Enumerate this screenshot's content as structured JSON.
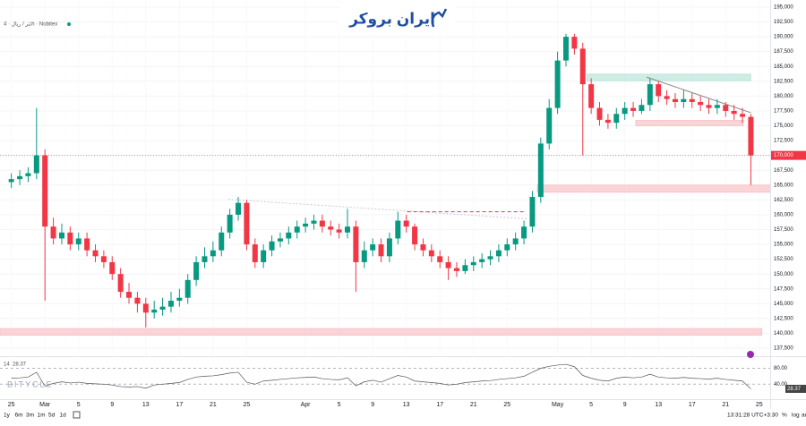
{
  "ui": {
    "symbol": "تتر / ریال · 4h · Nobitex",
    "logo": "ایران بروکر",
    "watermark": "BITYCLE",
    "ranges": [
      "1y",
      "6m",
      "3m",
      "1m",
      "5d",
      "1d"
    ],
    "clock": "13:31:28 UTC+3:30",
    "scale_buttons": [
      "%",
      "log",
      "auto"
    ]
  },
  "chart_data": [
    {
      "type": "candlestick",
      "up_color": "#089981",
      "down_color": "#f23645",
      "x": [
        0,
        1,
        2,
        3,
        4,
        5,
        6,
        7,
        8,
        9,
        10,
        11,
        12,
        13,
        14,
        15,
        16,
        17,
        18,
        19,
        20,
        21,
        22,
        23,
        24,
        25,
        26,
        27,
        28,
        29,
        30,
        31,
        32,
        33,
        34,
        35,
        36,
        37,
        38,
        39,
        40,
        41,
        42,
        43,
        44,
        45,
        46,
        47,
        48,
        49,
        50,
        51,
        52,
        53,
        54,
        55,
        56,
        57,
        58,
        59,
        60,
        61,
        62,
        63,
        64,
        65,
        66,
        67,
        68,
        69,
        70,
        71,
        72,
        73,
        74,
        75,
        76,
        77,
        78,
        79,
        80,
        81,
        82,
        83,
        84,
        85,
        86,
        87,
        88
      ],
      "open": [
        165500,
        166000,
        166500,
        167000,
        170000,
        158000,
        156000,
        157000,
        155000,
        156000,
        154000,
        153000,
        152000,
        150000,
        147000,
        146000,
        145000,
        143500,
        144000,
        144500,
        145500,
        146000,
        149000,
        152000,
        153000,
        154000,
        157000,
        160000,
        162000,
        155000,
        152000,
        154000,
        155500,
        156000,
        157000,
        158000,
        158500,
        159000,
        158000,
        157500,
        157000,
        158000,
        152000,
        154000,
        155000,
        153000,
        156000,
        159000,
        158000,
        155000,
        154000,
        153000,
        152000,
        151000,
        150500,
        151500,
        152000,
        152500,
        153000,
        154000,
        155000,
        156000,
        158000,
        163000,
        172000,
        178000,
        186000,
        190000,
        188000,
        182000,
        178000,
        176000,
        175500,
        177000,
        178000,
        177500,
        178500,
        182000,
        180000,
        179500,
        179000,
        179500,
        179000,
        178500,
        178000,
        178500,
        177500,
        177000,
        176500
      ],
      "high": [
        167000,
        167500,
        168000,
        178000,
        171000,
        159500,
        158500,
        158000,
        157000,
        157000,
        155000,
        154000,
        153000,
        151000,
        148500,
        147000,
        146000,
        145500,
        146000,
        147000,
        147500,
        150000,
        153000,
        154500,
        155500,
        158000,
        161000,
        163000,
        162500,
        156000,
        155000,
        156500,
        157000,
        158000,
        159000,
        159500,
        160000,
        160000,
        159000,
        158500,
        161000,
        159000,
        155500,
        156000,
        156000,
        157000,
        160500,
        160000,
        158500,
        156000,
        155000,
        154000,
        153000,
        152000,
        152500,
        153000,
        153500,
        154000,
        155000,
        156000,
        157000,
        159000,
        164000,
        173000,
        179500,
        187500,
        190500,
        190500,
        189000,
        183000,
        179000,
        177000,
        178000,
        179000,
        179000,
        179500,
        183000,
        182500,
        181000,
        180500,
        181000,
        180500,
        180000,
        179500,
        179500,
        179000,
        178500,
        178000,
        177000
      ],
      "low": [
        164500,
        165000,
        165500,
        166000,
        145500,
        155000,
        155000,
        154000,
        154000,
        153000,
        152000,
        151000,
        149000,
        146000,
        145000,
        143500,
        141000,
        142500,
        143000,
        143500,
        144500,
        145000,
        148000,
        151000,
        152000,
        153000,
        156000,
        159000,
        154000,
        151000,
        151000,
        153000,
        154500,
        155000,
        156000,
        157000,
        157500,
        157000,
        156500,
        156000,
        156000,
        147000,
        151000,
        153000,
        152000,
        152000,
        155000,
        157000,
        154000,
        153000,
        152000,
        151000,
        149000,
        149500,
        150000,
        150500,
        151000,
        151500,
        152000,
        153000,
        154000,
        155000,
        157000,
        162000,
        171000,
        177000,
        185000,
        187000,
        170000,
        177000,
        175000,
        174500,
        174500,
        176000,
        176500,
        177000,
        177500,
        179000,
        178500,
        178000,
        178000,
        178000,
        177500,
        177000,
        177000,
        176500,
        176000,
        175500,
        165000
      ],
      "close": [
        166000,
        166500,
        167000,
        170000,
        158000,
        156000,
        157000,
        155000,
        156000,
        154000,
        153000,
        152000,
        150000,
        147000,
        146000,
        145000,
        143500,
        144000,
        144500,
        145500,
        146000,
        149000,
        152000,
        153000,
        154000,
        157000,
        160000,
        162000,
        155000,
        152000,
        154000,
        155500,
        156000,
        157000,
        158000,
        158500,
        159000,
        158000,
        157500,
        157000,
        158000,
        152000,
        154000,
        155000,
        153000,
        156000,
        159000,
        158000,
        155000,
        154000,
        153000,
        152000,
        151000,
        150500,
        151500,
        152000,
        152500,
        153000,
        154000,
        155000,
        156000,
        158000,
        163000,
        172000,
        178000,
        186000,
        190000,
        188000,
        182000,
        178000,
        176000,
        175500,
        177000,
        178000,
        177500,
        178500,
        182000,
        180000,
        179500,
        179000,
        179500,
        179000,
        178500,
        178000,
        178500,
        177500,
        177000,
        176500,
        170000
      ],
      "last_price": {
        "value": 170000,
        "label": "170,000"
      },
      "xlim": [
        -0.85,
        90.8
      ],
      "ylim": [
        136300,
        196200
      ],
      "xticks": [
        {
          "value": 0,
          "label": "25"
        },
        {
          "value": 4,
          "label": "Mar"
        },
        {
          "value": 8,
          "label": "5"
        },
        {
          "value": 12,
          "label": "9"
        },
        {
          "value": 16,
          "label": "13"
        },
        {
          "value": 20,
          "label": "17"
        },
        {
          "value": 24,
          "label": "21"
        },
        {
          "value": 28,
          "label": "25"
        },
        {
          "value": 35,
          "label": "Apr"
        },
        {
          "value": 39,
          "label": "5"
        },
        {
          "value": 43,
          "label": "9"
        },
        {
          "value": 47,
          "label": "13"
        },
        {
          "value": 51,
          "label": "17"
        },
        {
          "value": 55,
          "label": "21"
        },
        {
          "value": 59,
          "label": "25"
        },
        {
          "value": 65,
          "label": "May"
        },
        {
          "value": 69,
          "label": "5"
        },
        {
          "value": 73,
          "label": "9"
        },
        {
          "value": 77,
          "label": "13"
        },
        {
          "value": 81,
          "label": "17"
        },
        {
          "value": 85,
          "label": "21"
        },
        {
          "value": 89,
          "label": "25"
        }
      ],
      "yticks": [
        {
          "value": 137500,
          "label": "137,500"
        },
        {
          "value": 140000,
          "label": "140,000"
        },
        {
          "value": 142500,
          "label": "142,500"
        },
        {
          "value": 145000,
          "label": "145,000"
        },
        {
          "value": 147500,
          "label": "147,500"
        },
        {
          "value": 150000,
          "label": "150,000"
        },
        {
          "value": 152500,
          "label": "152,500"
        },
        {
          "value": 155000,
          "label": "155,000"
        },
        {
          "value": 157500,
          "label": "157,500"
        },
        {
          "value": 160000,
          "label": "160,000"
        },
        {
          "value": 162500,
          "label": "162,500"
        },
        {
          "value": 165000,
          "label": "165,000"
        },
        {
          "value": 167500,
          "label": "167,500"
        },
        {
          "value": 170000,
          "label": "170,000"
        },
        {
          "value": 172500,
          "label": "172,500"
        },
        {
          "value": 175000,
          "label": "175,000"
        },
        {
          "value": 177500,
          "label": "177,500"
        },
        {
          "value": 180000,
          "label": "180,000"
        },
        {
          "value": 182500,
          "label": "182,500"
        },
        {
          "value": 185000,
          "label": "185,000"
        },
        {
          "value": 187500,
          "label": "187,500"
        },
        {
          "value": 190000,
          "label": "190,000"
        },
        {
          "value": 192500,
          "label": "192,500"
        },
        {
          "value": 195000,
          "label": "195,000"
        }
      ],
      "zones": [
        {
          "from": 139700,
          "to": 140800,
          "x": [
            -0.85,
            89.8
          ],
          "color": "#f8c5c9"
        },
        {
          "from": 163800,
          "to": 165000,
          "x": [
            63.1,
            92.8
          ],
          "color": "#f8c5c9"
        },
        {
          "from": 175000,
          "to": 175900,
          "x": [
            74.8,
            87.6
          ],
          "color": "#f8c5c9"
        },
        {
          "from": 182600,
          "to": 183700,
          "x": [
            69,
            88.5
          ],
          "color": "#bfe6dc"
        }
      ],
      "lines": [
        {
          "y": [
            183200,
            177200
          ],
          "x": [
            76.1,
            88.5
          ],
          "color": "#888888",
          "style": "solid"
        },
        {
          "y": [
            162600,
            159300
          ],
          "x": [
            26.3,
            62
          ],
          "color": "#c8c8d8",
          "style": "dotted"
        },
        {
          "y": [
            160500,
            160500
          ],
          "x": [
            47.6,
            61.5
          ],
          "color": "#f23645",
          "style": "dashed"
        }
      ]
    },
    {
      "type": "line",
      "label": "14",
      "value_label": "28.37",
      "color": "#555555",
      "x": [
        0,
        1,
        2,
        3,
        4,
        5,
        6,
        7,
        8,
        9,
        10,
        11,
        12,
        13,
        14,
        15,
        16,
        17,
        18,
        19,
        20,
        21,
        22,
        23,
        24,
        25,
        26,
        27,
        28,
        29,
        30,
        31,
        32,
        33,
        34,
        35,
        36,
        37,
        38,
        39,
        40,
        41,
        42,
        43,
        44,
        45,
        46,
        47,
        48,
        49,
        50,
        51,
        52,
        53,
        54,
        55,
        56,
        57,
        58,
        59,
        60,
        61,
        62,
        63,
        64,
        65,
        66,
        67,
        68,
        69,
        70,
        71,
        72,
        73,
        74,
        75,
        76,
        77,
        78,
        79,
        80,
        81,
        82,
        83,
        84,
        85,
        86,
        87,
        88
      ],
      "values": [
        55,
        56,
        58,
        70,
        35,
        42,
        46,
        43,
        45,
        42,
        41,
        40,
        38,
        34,
        33,
        34,
        30,
        38,
        40,
        42,
        44,
        52,
        58,
        60,
        61,
        64,
        68,
        70,
        45,
        40,
        48,
        50,
        52,
        54,
        56,
        57,
        58,
        54,
        52,
        51,
        56,
        36,
        46,
        50,
        45,
        54,
        62,
        58,
        48,
        46,
        44,
        42,
        38,
        40,
        44,
        46,
        48,
        49,
        52,
        54,
        56,
        60,
        70,
        80,
        85,
        88,
        90,
        84,
        62,
        55,
        50,
        48,
        55,
        58,
        56,
        58,
        65,
        58,
        56,
        55,
        57,
        55,
        54,
        53,
        55,
        52,
        50,
        48,
        28.37
      ],
      "xlim": [
        -0.85,
        90.8
      ],
      "ylim": [
        2.4,
        105.9
      ],
      "yticks": [
        {
          "value": 80,
          "label": "80.00"
        },
        {
          "value": 40,
          "label": "40.00"
        }
      ]
    }
  ]
}
